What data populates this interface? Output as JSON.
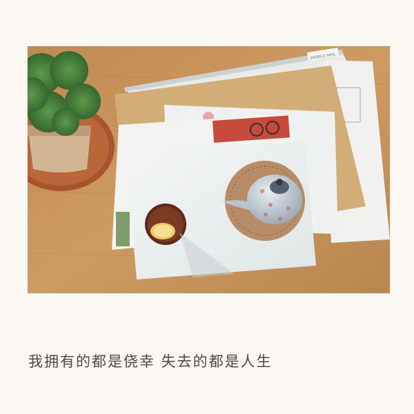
{
  "caption": "我拥有的都是侥幸 失去的都是人生",
  "photo": {
    "subject": "tea still life on wooden table",
    "envelope_stamp_text": "WORLD MAIL"
  },
  "colors": {
    "background": "#fbf7f3",
    "caption_text": "#4a4a4a",
    "table_wood": "#c8935a",
    "envelope_kraft": "#d2ad78"
  }
}
